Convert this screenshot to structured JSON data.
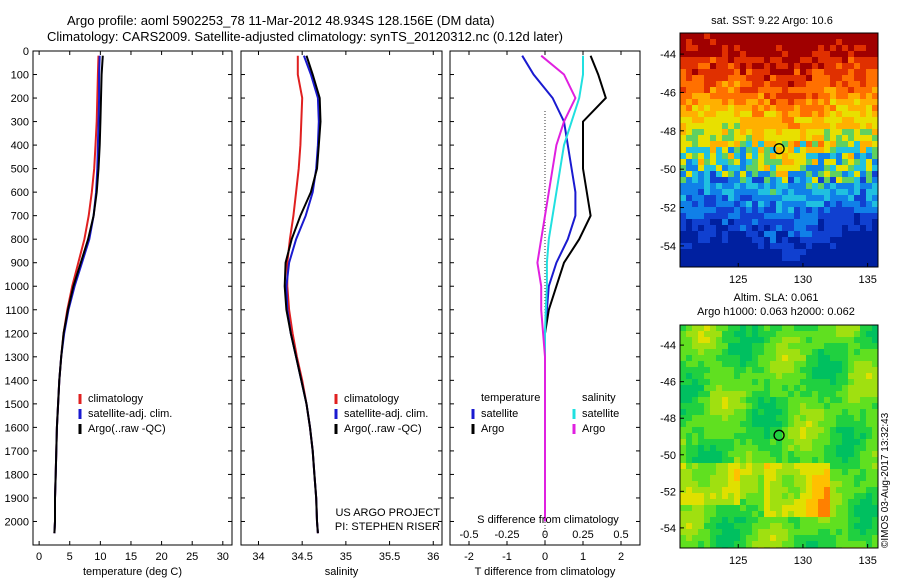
{
  "header": {
    "line1": "Argo profile: aoml 5902253_78 11-Mar-2012 48.934S 128.156E (DM data)",
    "line2": "Climatology: CARS2009. Satellite-adjusted climatology: synTS_20120312.nc (0.12d later)"
  },
  "colors": {
    "climatology": "#e02020",
    "satellite": "#1a1ad0",
    "argo": "#000000",
    "sat_salinity": "#20e0e0",
    "argo_salinity": "#e020e0"
  },
  "chart_data": [
    {
      "id": "temperature",
      "type": "line",
      "xlabel": "temperature (deg C)",
      "ylabel": "",
      "xlim": [
        -1,
        31.5
      ],
      "ylim": [
        2100,
        0
      ],
      "xticks": [
        0,
        5,
        10,
        15,
        20,
        25,
        30
      ],
      "xtick_labels": [
        "0",
        "5",
        "10",
        "15",
        "20",
        "25",
        "30"
      ],
      "yticks": [
        0,
        100,
        200,
        300,
        400,
        500,
        600,
        700,
        800,
        900,
        1000,
        1100,
        1200,
        1300,
        1400,
        1500,
        1600,
        1700,
        1800,
        1900,
        2000
      ],
      "ytick_labels": [
        "0",
        "100",
        "200",
        "300",
        "400",
        "500",
        "600",
        "700",
        "800",
        "900",
        "1000",
        "1100",
        "1200",
        "1300",
        "1400",
        "1500",
        "1600",
        "1700",
        "1800",
        "1900",
        "2000"
      ],
      "legend": {
        "placement": "lower-right",
        "entries": [
          "climatology",
          "satellite-adj. clim.",
          "Argo(..raw -QC)"
        ]
      },
      "series": [
        {
          "name": "climatology",
          "color_key": "climatology",
          "x": [
            9.7,
            9.6,
            9.5,
            9.4,
            9.2,
            9.0,
            8.6,
            8.1,
            7.4,
            6.4,
            5.4,
            4.6,
            4.0,
            3.6,
            3.3,
            3.1,
            2.9,
            2.8,
            2.7,
            2.6,
            2.6,
            2.5
          ],
          "y": [
            20,
            100,
            200,
            300,
            400,
            500,
            600,
            700,
            800,
            900,
            1000,
            1100,
            1200,
            1300,
            1400,
            1500,
            1600,
            1700,
            1800,
            1900,
            2000,
            2050
          ]
        },
        {
          "name": "satellite-adj. clim.",
          "color_key": "satellite",
          "x": [
            9.9,
            9.8,
            9.8,
            9.7,
            9.6,
            9.5,
            9.3,
            8.9,
            8.2,
            7.0,
            5.8,
            4.8,
            4.1,
            3.6,
            3.3,
            3.1,
            2.9,
            2.8,
            2.7,
            2.6,
            2.6,
            2.5
          ],
          "y": [
            20,
            100,
            200,
            300,
            400,
            500,
            600,
            700,
            800,
            900,
            1000,
            1100,
            1200,
            1300,
            1400,
            1500,
            1600,
            1700,
            1800,
            1900,
            2000,
            2050
          ]
        },
        {
          "name": "Argo(..raw -QC)",
          "color_key": "argo",
          "x": [
            10.4,
            10.2,
            10.1,
            10.0,
            9.9,
            9.7,
            9.4,
            8.9,
            8.0,
            6.8,
            5.6,
            4.7,
            4.0,
            3.6,
            3.3,
            3.1,
            2.9,
            2.8,
            2.7,
            2.6,
            2.6,
            2.5
          ],
          "y": [
            20,
            100,
            200,
            300,
            400,
            500,
            600,
            700,
            800,
            900,
            1000,
            1100,
            1200,
            1300,
            1400,
            1500,
            1600,
            1700,
            1800,
            1900,
            2000,
            2050
          ]
        }
      ]
    },
    {
      "id": "salinity",
      "type": "line",
      "xlabel": "salinity",
      "ylabel": "",
      "xlim": [
        33.8,
        36.1
      ],
      "ylim": [
        2100,
        0
      ],
      "xticks": [
        34,
        34.5,
        35,
        35.5,
        36
      ],
      "xtick_labels": [
        "34",
        "34.5",
        "35",
        "35.5",
        "36"
      ],
      "legend": {
        "placement": "lower-right",
        "entries": [
          "climatology",
          "satellite-adj. clim.",
          "Argo(..raw -QC)"
        ]
      },
      "annotation": [
        "US ARGO PROJECT",
        "PI: STEPHEN RISER"
      ],
      "series": [
        {
          "name": "climatology",
          "color_key": "climatology",
          "x": [
            34.45,
            34.45,
            34.5,
            34.49,
            34.48,
            34.46,
            34.43,
            34.4,
            34.36,
            34.33,
            34.33,
            34.35,
            34.39,
            34.44,
            34.5,
            34.55,
            34.59,
            34.62,
            34.64,
            34.66,
            34.67,
            34.68
          ],
          "y": [
            20,
            100,
            200,
            300,
            400,
            500,
            600,
            700,
            800,
            900,
            1000,
            1100,
            1200,
            1300,
            1400,
            1500,
            1600,
            1700,
            1800,
            1900,
            2000,
            2050
          ]
        },
        {
          "name": "satellite-adj. clim.",
          "color_key": "satellite",
          "x": [
            34.52,
            34.6,
            34.68,
            34.69,
            34.68,
            34.66,
            34.62,
            34.54,
            34.43,
            34.35,
            34.32,
            34.33,
            34.37,
            34.43,
            34.49,
            34.55,
            34.59,
            34.62,
            34.64,
            34.66,
            34.67,
            34.68
          ],
          "y": [
            20,
            100,
            200,
            300,
            400,
            500,
            600,
            700,
            800,
            900,
            1000,
            1100,
            1200,
            1300,
            1400,
            1500,
            1600,
            1700,
            1800,
            1900,
            2000,
            2050
          ]
        },
        {
          "name": "Argo(..raw -QC)",
          "color_key": "argo",
          "x": [
            34.55,
            34.62,
            34.7,
            34.71,
            34.69,
            34.67,
            34.6,
            34.48,
            34.38,
            34.31,
            34.3,
            34.32,
            34.37,
            34.43,
            34.49,
            34.55,
            34.59,
            34.62,
            34.64,
            34.66,
            34.67,
            34.68
          ],
          "y": [
            20,
            100,
            200,
            300,
            400,
            500,
            600,
            700,
            800,
            900,
            1000,
            1100,
            1200,
            1300,
            1400,
            1500,
            1600,
            1700,
            1800,
            1900,
            2000,
            2050
          ]
        }
      ]
    },
    {
      "id": "difference",
      "type": "line",
      "xlabel": "T difference from climatology",
      "top_label": "S difference from climatology",
      "xlim": [
        -2.5,
        2.5
      ],
      "ylim": [
        2100,
        0
      ],
      "xticks": [
        -2,
        -1,
        0,
        1,
        2
      ],
      "xtick_labels": [
        "-2",
        "-1",
        "0",
        "1",
        "2"
      ],
      "s_ticks": [
        -0.5,
        -0.25,
        0,
        0.25,
        0.5
      ],
      "s_tick_labels": [
        "-0.5",
        "-0.25",
        "0",
        "0.25",
        "0.5"
      ],
      "legend": {
        "placement": "lower-center",
        "col1_title": "temperature",
        "col2_title": "salinity",
        "col1": [
          "satellite",
          "Argo"
        ],
        "col2": [
          "satellite",
          "Argo"
        ]
      },
      "series": [
        {
          "name": "satellite",
          "group": "temperature",
          "color_key": "satellite",
          "x": [
            -0.6,
            -0.3,
            0.2,
            0.5,
            0.6,
            0.7,
            0.8,
            0.8,
            0.6,
            0.3,
            0.1,
            0.05,
            0.0,
            0.0,
            0.0,
            0.0,
            0.0,
            0.0,
            0.0,
            0.0,
            0.0
          ],
          "y": [
            20,
            100,
            200,
            300,
            400,
            500,
            600,
            700,
            800,
            900,
            1000,
            1100,
            1200,
            1300,
            1400,
            1500,
            1600,
            1700,
            1800,
            1900,
            2000
          ]
        },
        {
          "name": "Argo",
          "group": "temperature",
          "color_key": "argo",
          "x": [
            1.2,
            1.4,
            1.6,
            1.0,
            1.0,
            1.0,
            1.1,
            1.2,
            0.9,
            0.5,
            0.3,
            0.1,
            0.0,
            0.0,
            0.0,
            0.0,
            0.0,
            0.0,
            0.0,
            0.0,
            0.0
          ],
          "y": [
            20,
            100,
            200,
            300,
            400,
            500,
            600,
            700,
            800,
            900,
            1000,
            1100,
            1200,
            1300,
            1400,
            1500,
            1600,
            1700,
            1800,
            1900,
            2000
          ]
        },
        {
          "name": "satellite",
          "group": "salinity",
          "color_key": "sat_salinity",
          "x": [
            1.0,
            1.0,
            0.9,
            0.7,
            0.5,
            0.4,
            0.3,
            0.2,
            0.1,
            0.05,
            0.05,
            0.02,
            0.0,
            0.0,
            0.0,
            0.0,
            0.0,
            0.0,
            0.0,
            0.0,
            0.0
          ],
          "y": [
            20,
            100,
            200,
            300,
            400,
            500,
            600,
            700,
            800,
            900,
            1000,
            1100,
            1200,
            1300,
            1400,
            1500,
            1600,
            1700,
            1800,
            1900,
            2000
          ]
        },
        {
          "name": "Argo",
          "group": "salinity",
          "color_key": "argo_salinity",
          "x": [
            -0.1,
            0.5,
            0.8,
            0.5,
            0.3,
            0.2,
            0.1,
            0.0,
            -0.1,
            -0.2,
            -0.1,
            -0.1,
            -0.05,
            0.0,
            0.0,
            0.0,
            0.0,
            0.0,
            0.0,
            0.0,
            0.0
          ],
          "y": [
            20,
            100,
            200,
            300,
            400,
            500,
            600,
            700,
            800,
            900,
            1000,
            1100,
            1200,
            1300,
            1400,
            1500,
            1600,
            1700,
            1800,
            1900,
            2000
          ]
        }
      ]
    },
    {
      "id": "sst_map",
      "type": "heatmap",
      "title": "sat. SST: 9.22  Argo: 10.6",
      "xticks": [
        125,
        130,
        135
      ],
      "xtick_labels": [
        "125",
        "130",
        "135"
      ],
      "yticks": [
        -44,
        -46,
        -48,
        -50,
        -52,
        -54
      ],
      "ytick_labels": [
        "-44",
        "-46",
        "-48",
        "-50",
        "-52",
        "-54"
      ],
      "xlim": [
        120.5,
        135.8
      ],
      "ylim": [
        -55.1,
        -42.9
      ],
      "marker": {
        "lon": 128.156,
        "lat": -48.934
      }
    },
    {
      "id": "sla_map",
      "type": "heatmap",
      "title_lines": [
        "Altim. SLA: 0.061",
        "Argo h1000: 0.063 h2000: 0.062"
      ],
      "xticks": [
        125,
        130,
        135
      ],
      "xtick_labels": [
        "125",
        "130",
        "135"
      ],
      "yticks": [
        -44,
        -46,
        -48,
        -50,
        -52,
        -54
      ],
      "ytick_labels": [
        "-44",
        "-46",
        "-48",
        "-50",
        "-52",
        "-54"
      ],
      "xlim": [
        120.5,
        135.8
      ],
      "ylim": [
        -55.1,
        -42.9
      ],
      "marker": {
        "lon": 128.156,
        "lat": -48.934
      }
    }
  ],
  "footer": {
    "stamp": "©IMOS 03-Aug-2017 13:32:43"
  }
}
